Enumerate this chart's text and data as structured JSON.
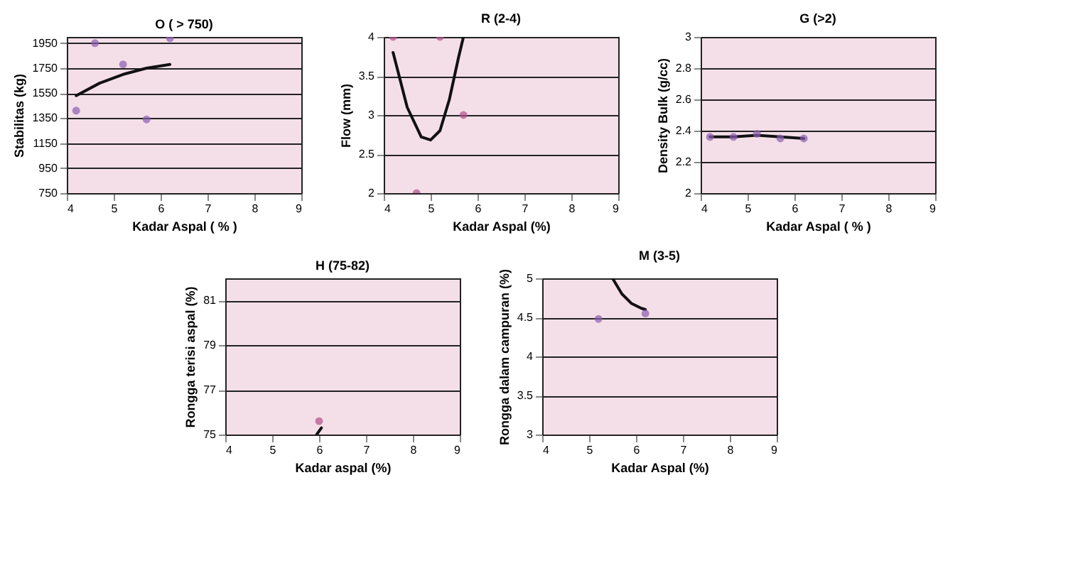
{
  "chart_data": [
    {
      "type": "scatter",
      "title": "O ( > 750)",
      "xlabel": "Kadar Aspal ( % )",
      "ylabel": "Stabilitas (kg)",
      "xlim": [
        4,
        9
      ],
      "xticks": [
        4,
        5,
        6,
        7,
        8,
        9
      ],
      "ylim": [
        750,
        2000
      ],
      "yticks": [
        750,
        950,
        1150,
        1350,
        1550,
        1750,
        1950
      ],
      "grid": "y",
      "series": [
        {
          "type": "scatter",
          "marker": "circle",
          "color": "#8a5cb0",
          "x": [
            4.2,
            4.6,
            5.2,
            5.7,
            6.2
          ],
          "values": [
            1410,
            1950,
            1780,
            1340,
            1990
          ]
        },
        {
          "type": "line",
          "color": "#111111",
          "x": [
            4.2,
            4.7,
            5.2,
            5.7,
            6.2
          ],
          "values": [
            1530,
            1630,
            1700,
            1750,
            1780
          ]
        }
      ]
    },
    {
      "type": "scatter",
      "title": "R (2-4)",
      "xlabel": "Kadar Aspal (%)",
      "ylabel": "Flow (mm)",
      "xlim": [
        4,
        9
      ],
      "xticks": [
        4,
        5,
        6,
        7,
        8,
        9
      ],
      "ylim": [
        2,
        4
      ],
      "yticks": [
        2,
        2.5,
        3,
        3.5,
        4
      ],
      "grid": "y",
      "series": [
        {
          "type": "scatter",
          "marker": "circle",
          "color": "#b0508a",
          "x": [
            4.2,
            4.7,
            5.2,
            5.7
          ],
          "values": [
            4,
            2,
            4,
            3
          ]
        },
        {
          "type": "line",
          "color": "#111111",
          "x": [
            4.2,
            4.5,
            4.8,
            5.0,
            5.2,
            5.4,
            5.6,
            5.7
          ],
          "values": [
            3.8,
            3.1,
            2.72,
            2.68,
            2.8,
            3.2,
            3.75,
            4.0
          ]
        }
      ]
    },
    {
      "type": "scatter",
      "title": "G (>2)",
      "xlabel": "Kadar Aspal ( % )",
      "ylabel": "Density Bulk (g/cc)",
      "xlim": [
        4,
        9
      ],
      "xticks": [
        4,
        5,
        6,
        7,
        8,
        9
      ],
      "ylim": [
        2,
        3
      ],
      "yticks": [
        2,
        2.2,
        2.4,
        2.6,
        2.8,
        3
      ],
      "grid": "y",
      "series": [
        {
          "type": "scatter",
          "marker": "circle",
          "color": "#8a5cb0",
          "x": [
            4.2,
            4.7,
            5.2,
            5.7,
            6.2
          ],
          "values": [
            2.36,
            2.36,
            2.38,
            2.35,
            2.35
          ]
        },
        {
          "type": "line",
          "color": "#111111",
          "x": [
            4.2,
            4.7,
            5.2,
            5.7,
            6.2
          ],
          "values": [
            2.36,
            2.36,
            2.37,
            2.36,
            2.35
          ]
        }
      ]
    },
    {
      "type": "scatter",
      "title": "H (75-82)",
      "xlabel": "Kadar aspal (%)",
      "ylabel": "Rongga terisi aspal (%)",
      "xlim": [
        4,
        9
      ],
      "xticks": [
        4,
        5,
        6,
        7,
        8,
        9
      ],
      "ylim": [
        75,
        82
      ],
      "yticks": [
        75,
        77,
        79,
        81
      ],
      "grid": "y",
      "series": [
        {
          "type": "scatter",
          "marker": "circle",
          "color": "#b0508a",
          "x": [
            6.0
          ],
          "values": [
            75.6
          ]
        },
        {
          "type": "line",
          "color": "#111111",
          "x": [
            5.95,
            6.05
          ],
          "values": [
            75.0,
            75.3
          ]
        }
      ]
    },
    {
      "type": "scatter",
      "title": "M (3-5)",
      "xlabel": "Kadar Aspal (%)",
      "ylabel": "Rongga dalam campuran (%)",
      "xlim": [
        4,
        9
      ],
      "xticks": [
        4,
        5,
        6,
        7,
        8,
        9
      ],
      "ylim": [
        3,
        5
      ],
      "yticks": [
        3,
        3.5,
        4,
        4.5,
        5
      ],
      "grid": "y",
      "series": [
        {
          "type": "scatter",
          "marker": "circle",
          "color": "#8a5cb0",
          "x": [
            5.2,
            6.2
          ],
          "values": [
            4.48,
            4.55
          ]
        },
        {
          "type": "line",
          "color": "#111111",
          "x": [
            5.5,
            5.7,
            5.9,
            6.1,
            6.2
          ],
          "values": [
            5.0,
            4.8,
            4.68,
            4.62,
            4.6
          ]
        }
      ]
    }
  ]
}
